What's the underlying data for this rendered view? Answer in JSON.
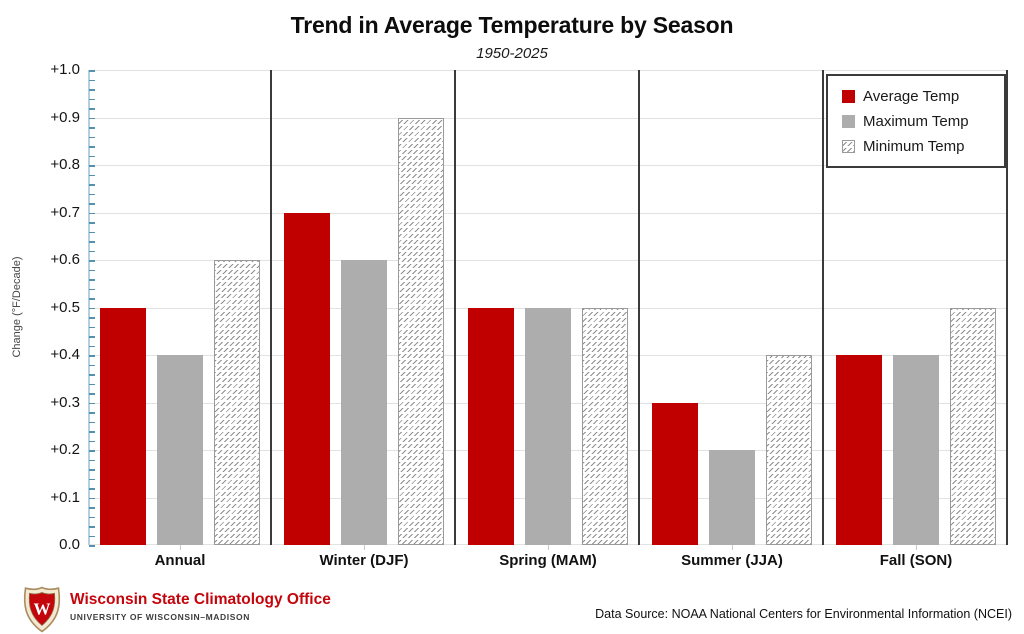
{
  "header": {
    "title": "Trend in Average Temperature by Season",
    "subtitle": "1950-2025"
  },
  "chart_data": {
    "type": "bar",
    "categories": [
      "Annual",
      "Winter (DJF)",
      "Spring (MAM)",
      "Summer (JJA)",
      "Fall (SON)"
    ],
    "series": [
      {
        "name": "Average Temp",
        "style": "solid",
        "color": "#c00000",
        "values": [
          0.5,
          0.7,
          0.5,
          0.3,
          0.4
        ]
      },
      {
        "name": "Maximum Temp",
        "style": "solid",
        "color": "#adadad",
        "values": [
          0.4,
          0.6,
          0.5,
          0.2,
          0.4
        ]
      },
      {
        "name": "Minimum Temp",
        "style": "hatch",
        "color": "#8f8f8f",
        "values": [
          0.6,
          0.9,
          0.5,
          0.4,
          0.5
        ]
      }
    ],
    "title": "Trend in Average Temperature by Season",
    "subtitle": "1950-2025",
    "xlabel": "",
    "ylabel": "Change (°F/Decade)",
    "ylim": [
      0.0,
      1.0
    ],
    "ytick_step": 0.1,
    "ytick_labels": [
      "0.0",
      "+0.1",
      "+0.2",
      "+0.3",
      "+0.4",
      "+0.5",
      "+0.6",
      "+0.7",
      "+0.8",
      "+0.9",
      "+1.0"
    ],
    "grid": true,
    "legend_position": "top-right"
  },
  "colors": {
    "average_temp": "#c00000",
    "maximum_temp": "#adadad",
    "gridline": "#e2e2e2",
    "group_separator": "#3b3b3b",
    "axis_line": "#b3d0e0",
    "axis_tick": "#5590ae",
    "brand_red": "#c5050c"
  },
  "footer": {
    "org_name": "Wisconsin State Climatology Office",
    "org_subtitle": "UNIVERSITY OF WISCONSIN–MADISON",
    "data_source": "Data Source: NOAA National Centers for Environmental Information (NCEI)"
  }
}
